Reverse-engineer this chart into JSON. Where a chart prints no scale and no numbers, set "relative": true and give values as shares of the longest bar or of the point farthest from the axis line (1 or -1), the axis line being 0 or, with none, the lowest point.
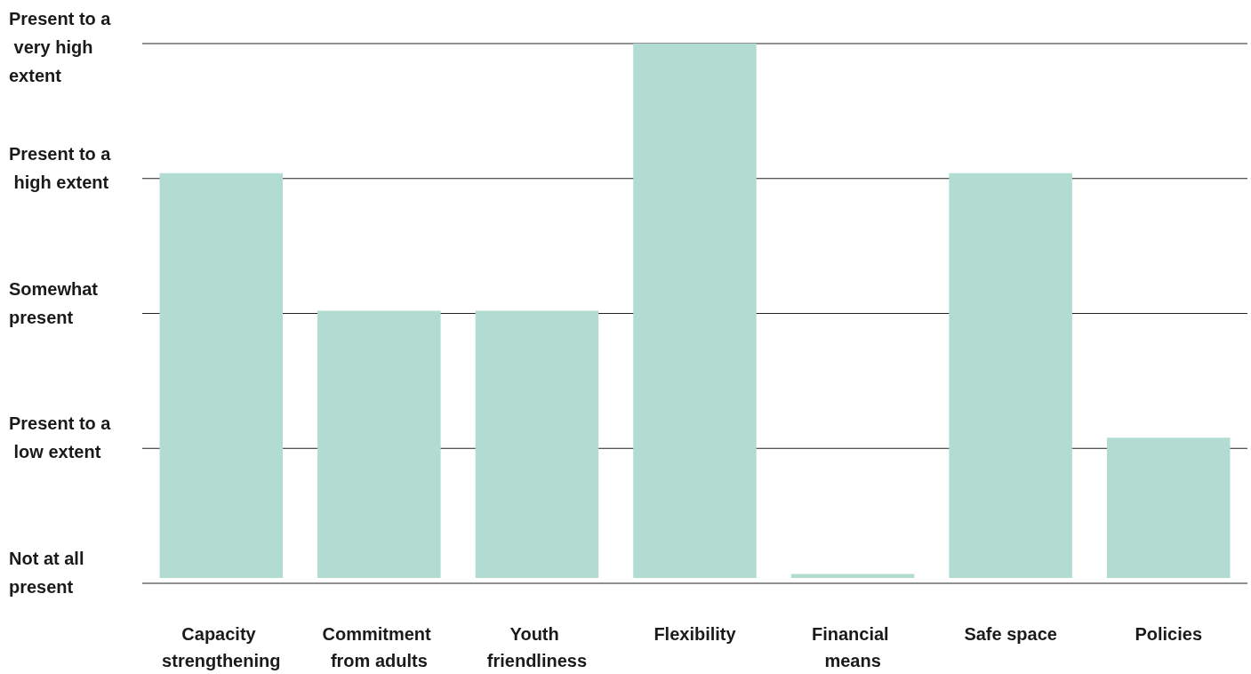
{
  "chart_data": {
    "type": "bar",
    "categories": [
      "Capacity strengthening",
      "Commitment from adults",
      "Youth friendliness",
      "Flexibility",
      "Financial means",
      "Safe space",
      "Policies"
    ],
    "values": [
      0.7575,
      0.5,
      0.5,
      1,
      0.0075,
      0.7575,
      0.2625
    ],
    "relative": true,
    "color": "#b2dcd1",
    "annotations": [
      "Present to a very high extent",
      "Present to a high extent",
      "Somewhat present",
      "Present to a low extent",
      "Not at all present"
    ],
    "grid": "y"
  }
}
